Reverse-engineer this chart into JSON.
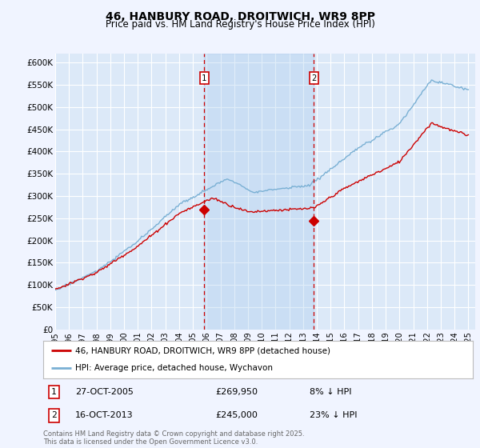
{
  "title": "46, HANBURY ROAD, DROITWICH, WR9 8PP",
  "subtitle": "Price paid vs. HM Land Registry's House Price Index (HPI)",
  "background_color": "#f0f4ff",
  "plot_bg_color": "#dce9f8",
  "ylim": [
    0,
    620000
  ],
  "yticks": [
    0,
    50000,
    100000,
    150000,
    200000,
    250000,
    300000,
    350000,
    400000,
    450000,
    500000,
    550000,
    600000
  ],
  "ytick_labels": [
    "£0",
    "£50K",
    "£100K",
    "£150K",
    "£200K",
    "£250K",
    "£300K",
    "£350K",
    "£400K",
    "£450K",
    "£500K",
    "£550K",
    "£600K"
  ],
  "vline1_year": 2005.82,
  "vline2_year": 2013.79,
  "marker1_value": 269950,
  "marker2_value": 245000,
  "red_line_color": "#cc0000",
  "blue_line_color": "#7ab0d4",
  "vline_color": "#cc0000",
  "legend_label_red": "46, HANBURY ROAD, DROITWICH, WR9 8PP (detached house)",
  "legend_label_blue": "HPI: Average price, detached house, Wychavon",
  "annotation1_date": "27-OCT-2005",
  "annotation1_price": "£269,950",
  "annotation1_hpi": "8% ↓ HPI",
  "annotation2_date": "16-OCT-2013",
  "annotation2_price": "£245,000",
  "annotation2_hpi": "23% ↓ HPI",
  "copyright_text": "Contains HM Land Registry data © Crown copyright and database right 2025.\nThis data is licensed under the Open Government Licence v3.0."
}
